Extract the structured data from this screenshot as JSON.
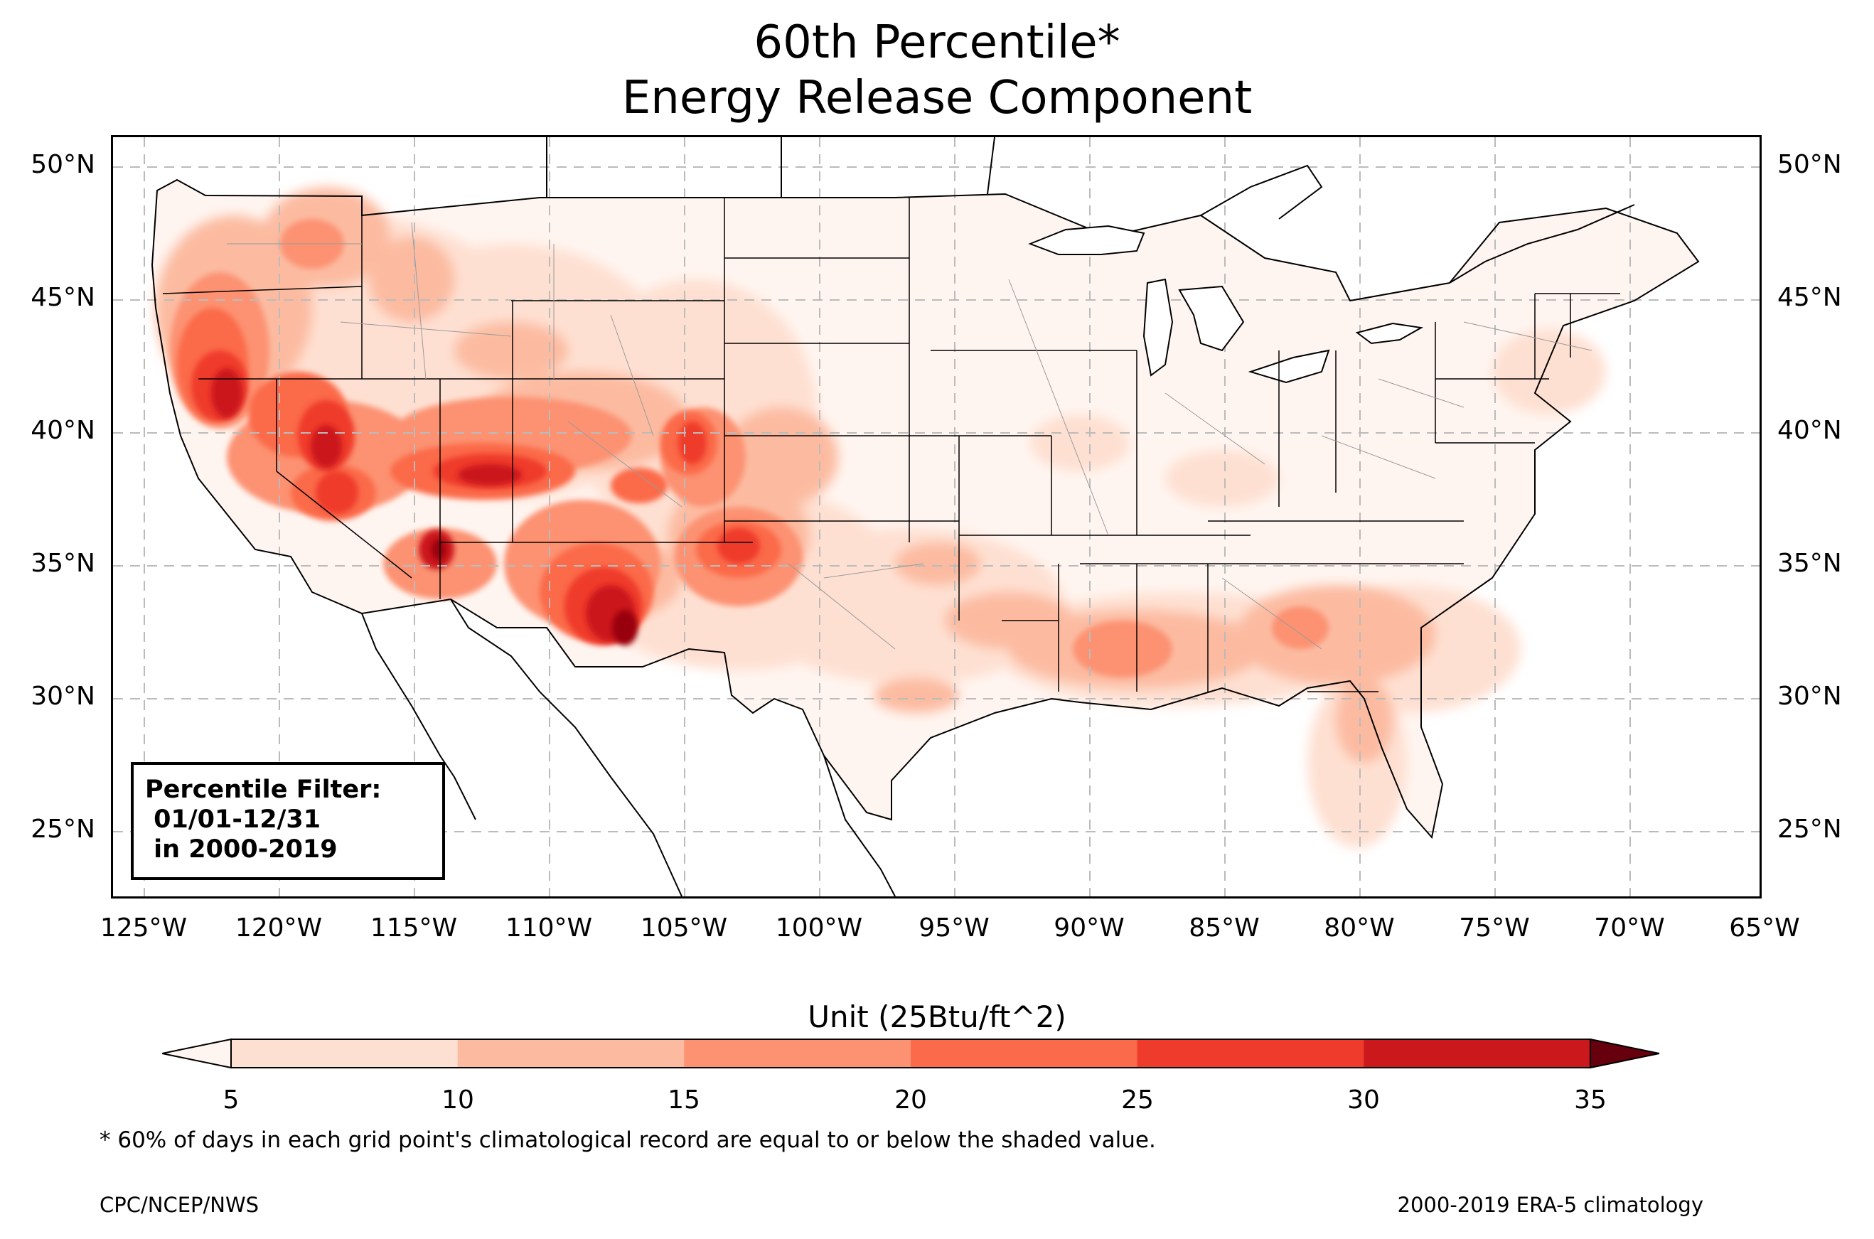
{
  "title_line1": "60th Percentile*",
  "title_line2": "Energy Release Component",
  "lat_ticks": [
    "50°N",
    "45°N",
    "40°N",
    "35°N",
    "30°N",
    "25°N"
  ],
  "lon_ticks": [
    "125°W",
    "120°W",
    "115°W",
    "110°W",
    "105°W",
    "100°W",
    "95°W",
    "90°W",
    "85°W",
    "80°W",
    "75°W",
    "70°W",
    "65°W"
  ],
  "filter_box": "Percentile Filter:\n 01/01-12/31\n in 2000-2019",
  "colorbar": {
    "label": "Unit (25Btu/ft^2)",
    "ticks": [
      "5",
      "10",
      "15",
      "20",
      "25",
      "30",
      "35"
    ],
    "colors": [
      "#fee0d2",
      "#fcbba1",
      "#fc9272",
      "#fb6a4a",
      "#ef3b2c",
      "#cb181d",
      "#99000d"
    ],
    "under_color": "#fff5f0",
    "over_color": "#67000d"
  },
  "footnote": "* 60% of days in each grid point's climatological record are equal to or below the shaded value.",
  "credit_left": "CPC/NCEP/NWS",
  "credit_right": "2000-2019 ERA-5 climatology"
}
